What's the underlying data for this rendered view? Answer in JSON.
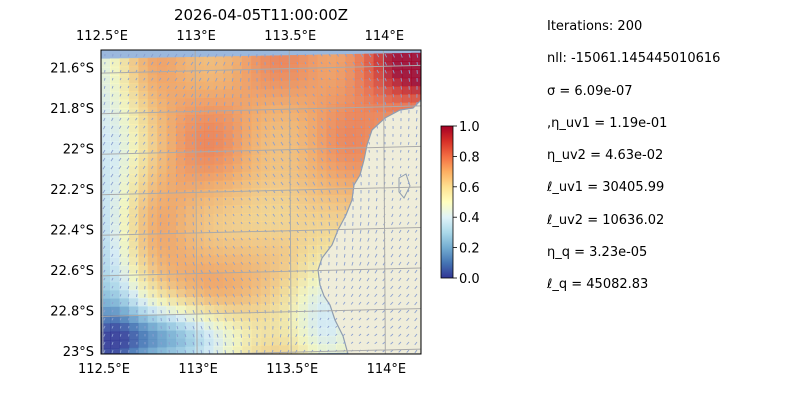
{
  "chart_data": {
    "type": "heatmap",
    "title": "2026-04-05T11:00:00Z",
    "x_ticks": [
      "112.5°E",
      "113°E",
      "113.5°E",
      "114°E"
    ],
    "x_tick_values": [
      112.5,
      113.0,
      113.5,
      114.0
    ],
    "y_ticks": [
      "21.6°S",
      "21.8°S",
      "22°S",
      "22.2°S",
      "22.4°S",
      "22.6°S",
      "22.8°S",
      "23°S"
    ],
    "y_tick_values": [
      -21.6,
      -21.8,
      -22.0,
      -22.2,
      -22.4,
      -22.6,
      -22.8,
      -23.0
    ],
    "xlim": [
      112.5,
      114.2
    ],
    "ylim": [
      -23.0,
      -21.5
    ],
    "grid": true,
    "colorbar": {
      "ticks": [
        "0.0",
        "0.2",
        "0.4",
        "0.6",
        "0.8",
        "1.0"
      ],
      "tick_values": [
        0.0,
        0.2,
        0.4,
        0.6,
        0.8,
        1.0
      ],
      "range": [
        0,
        1
      ]
    },
    "colors": {
      "ocean": "#9bb8dd",
      "land": "#efedda",
      "coast": "#8f9db0",
      "grid": "#aaaaaa",
      "arrows": "#8a9fd0"
    },
    "field_description_regions": [
      {
        "region": "north-east corner",
        "value": 0.8
      },
      {
        "region": "central",
        "value": 0.72
      },
      {
        "region": "west edge",
        "value": 0.32
      },
      {
        "region": "south-west",
        "value": 0.12
      },
      {
        "region": "near coast south",
        "value": 0.2
      }
    ]
  },
  "parameters": [
    {
      "text": "Iterations: 200"
    },
    {
      "text": "nll: -15061.145445010616"
    },
    {
      "text": "σ = 6.09e-07"
    },
    {
      "text": ",η_uv1 = 1.19e-01"
    },
    {
      "text": "η_uv2 = 4.63e-02"
    },
    {
      "text": "ℓ_uv1 = 30405.99"
    },
    {
      "text": "ℓ_uv2 = 10636.02"
    },
    {
      "text": "η_q = 3.23e-05"
    },
    {
      "text": "ℓ_q = 45082.83"
    }
  ]
}
